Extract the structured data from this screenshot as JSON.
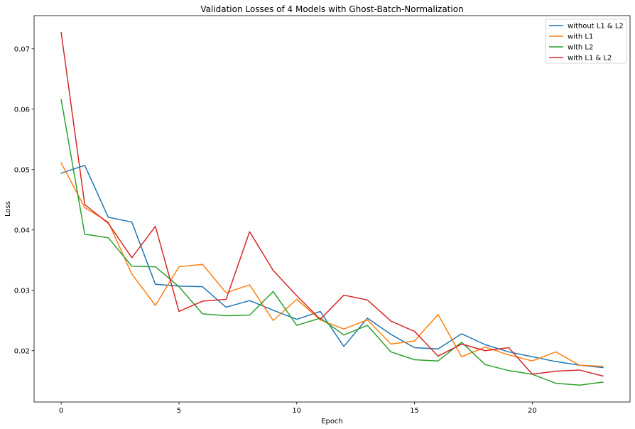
{
  "chart_data": {
    "type": "line",
    "title": "Validation Losses of 4 Models with Ghost-Batch-Normalization",
    "xlabel": "Epoch",
    "ylabel": "Loss",
    "xlim": [
      -1.15,
      24.15
    ],
    "ylim": [
      0.0115,
      0.0755
    ],
    "xticks": [
      0,
      5,
      10,
      15,
      20
    ],
    "yticks": [
      0.02,
      0.03,
      0.04,
      0.05,
      0.06,
      0.07
    ],
    "grid": false,
    "legend": "top-right",
    "x": [
      0,
      1,
      2,
      3,
      4,
      5,
      6,
      7,
      8,
      9,
      10,
      11,
      12,
      13,
      14,
      15,
      16,
      17,
      18,
      19,
      20,
      21,
      22,
      23
    ],
    "series": [
      {
        "name": "without L1 & L2",
        "color": "#1f77b4",
        "values": [
          0.0494,
          0.0507,
          0.0421,
          0.0413,
          0.031,
          0.0307,
          0.0306,
          0.0272,
          0.0283,
          0.0267,
          0.0252,
          0.0265,
          0.0207,
          0.0254,
          0.0227,
          0.0205,
          0.0203,
          0.0228,
          0.021,
          0.0198,
          0.019,
          0.0182,
          0.0176,
          0.0172
        ]
      },
      {
        "name": "with L1",
        "color": "#ff7f0e",
        "values": [
          0.0511,
          0.0437,
          0.0413,
          0.0327,
          0.0275,
          0.0339,
          0.0343,
          0.0296,
          0.0309,
          0.025,
          0.0285,
          0.0251,
          0.0236,
          0.0251,
          0.0211,
          0.0216,
          0.026,
          0.019,
          0.0206,
          0.0193,
          0.0183,
          0.0198,
          0.0176,
          0.0174
        ]
      },
      {
        "name": "with L2",
        "color": "#2ca02c",
        "values": [
          0.0616,
          0.0393,
          0.0387,
          0.034,
          0.0339,
          0.0306,
          0.0261,
          0.0258,
          0.0259,
          0.0298,
          0.0242,
          0.0254,
          0.0226,
          0.0242,
          0.0198,
          0.0185,
          0.0183,
          0.0214,
          0.0177,
          0.0167,
          0.0161,
          0.0146,
          0.0143,
          0.0148
        ]
      },
      {
        "name": "with L1 & L2",
        "color": "#d62728",
        "values": [
          0.0727,
          0.0442,
          0.0411,
          0.0354,
          0.0406,
          0.0265,
          0.0282,
          0.0285,
          0.0397,
          0.0333,
          0.0291,
          0.0252,
          0.0292,
          0.0284,
          0.0249,
          0.0232,
          0.0191,
          0.0211,
          0.02,
          0.0205,
          0.0161,
          0.0166,
          0.0168,
          0.0158
        ]
      }
    ]
  }
}
